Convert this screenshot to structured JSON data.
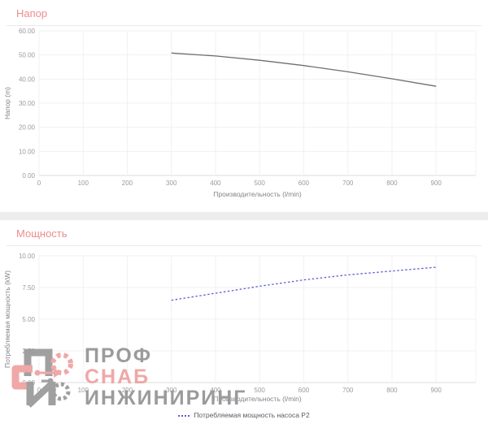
{
  "colors": {
    "section_title": "#ee8d8d",
    "head_curve": "#6e6e6e",
    "power_curve": "#5d5dd8",
    "separator": "#ededed",
    "watermark_gray": "#969696",
    "watermark_red": "#f0a3a3"
  },
  "chart_data": [
    {
      "type": "line",
      "title": "Напор",
      "xlabel": "Производительность (l/min)",
      "ylabel": "Напор (m)",
      "x": [
        300,
        400,
        500,
        600,
        700,
        800,
        900
      ],
      "values": [
        50.8,
        49.6,
        47.8,
        45.6,
        43.0,
        40.1,
        37.0
      ],
      "xlim": [
        0,
        990
      ],
      "ylim": [
        0,
        60
      ],
      "xticks": [
        0,
        100,
        200,
        300,
        400,
        500,
        600,
        700,
        800,
        900
      ],
      "yticks": [
        0,
        10,
        20,
        30,
        40,
        50,
        60
      ],
      "ytick_labels": [
        "0.00",
        "10.00",
        "20.00",
        "30.00",
        "40.00",
        "50.00",
        "60.00"
      ],
      "grid": true,
      "legend": null,
      "legend_position": null,
      "line_color": "#6e6e6e",
      "line_style": "solid"
    },
    {
      "type": "line",
      "title": "Мощность",
      "xlabel": "Производительность (l/min)",
      "ylabel": "Потребляемая мощность (kW)",
      "x": [
        300,
        400,
        500,
        600,
        700,
        800,
        900
      ],
      "values": [
        6.5,
        7.05,
        7.6,
        8.1,
        8.5,
        8.8,
        9.1
      ],
      "xlim": [
        0,
        990
      ],
      "ylim": [
        0,
        10
      ],
      "xticks": [
        0,
        100,
        200,
        300,
        400,
        500,
        600,
        700,
        800,
        900
      ],
      "yticks": [
        0,
        2.5,
        5,
        7.5,
        10
      ],
      "ytick_labels": [
        "0.00",
        "2.50",
        "5.00",
        "7.50",
        "10.00"
      ],
      "grid": true,
      "legend": "Потребляемая мощность насоса P2",
      "legend_position": "bottom-center",
      "line_color": "#5d5dd8",
      "line_style": "dotted"
    }
  ],
  "watermark": {
    "lines": [
      {
        "text": "ПРОФ",
        "color": "#969696"
      },
      {
        "text": "СНАБ",
        "color": "#f0a3a3"
      },
      {
        "text": "ИНЖИНИРИНГ",
        "color": "#969696"
      }
    ]
  }
}
